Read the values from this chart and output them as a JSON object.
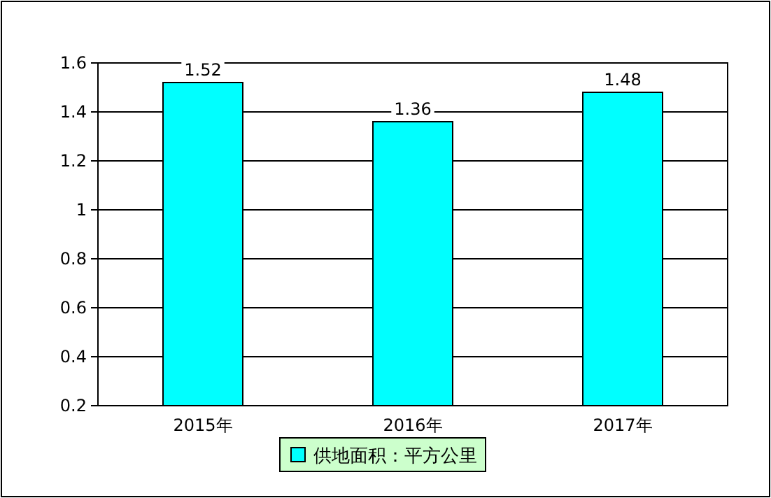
{
  "chart_data": {
    "type": "bar",
    "categories": [
      "2015年",
      "2016年",
      "2017年"
    ],
    "series": [
      {
        "name": "供地面积：平方公里",
        "color": "#00ffff",
        "values": [
          1.52,
          1.36,
          1.48
        ]
      }
    ],
    "ylim": [
      0.2,
      1.6
    ],
    "yticks": [
      0.2,
      0.4,
      0.6,
      0.8,
      1,
      1.2,
      1.4,
      1.6
    ],
    "grid": "y",
    "legend": "bottom",
    "data_labels": true
  }
}
